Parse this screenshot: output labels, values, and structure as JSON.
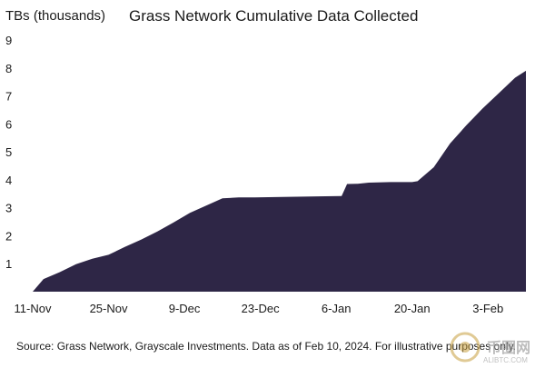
{
  "chart_data": {
    "type": "area",
    "title": "Grass Network Cumulative Data Collected",
    "unit_label": "TBs (thousands)",
    "ylim": [
      0,
      9
    ],
    "y_ticks": [
      9,
      8,
      7,
      6,
      5,
      4,
      3,
      2,
      1
    ],
    "x_tick_labels": [
      "11-Nov",
      "25-Nov",
      "9-Dec",
      "23-Dec",
      "6-Jan",
      "20-Jan",
      "3-Feb"
    ],
    "x_range": [
      "2023-11-11",
      "2024-02-11"
    ],
    "grid": false,
    "fill_color": "#2e2646",
    "series": [
      {
        "dates": [
          "2023-11-11",
          "2023-11-13",
          "2023-11-16",
          "2023-11-19",
          "2023-11-22",
          "2023-11-25",
          "2023-11-28",
          "2023-12-01",
          "2023-12-04",
          "2023-12-07",
          "2023-12-10",
          "2023-12-13",
          "2023-12-16",
          "2023-12-19",
          "2023-12-22",
          "2023-12-27",
          "2023-12-31",
          "2024-01-04",
          "2024-01-07",
          "2024-01-08",
          "2024-01-10",
          "2024-01-12",
          "2024-01-16",
          "2024-01-20",
          "2024-01-21",
          "2024-01-24",
          "2024-01-27",
          "2024-01-30",
          "2024-02-02",
          "2024-02-05",
          "2024-02-08",
          "2024-02-10"
        ],
        "values": [
          0,
          0.45,
          0.7,
          0.98,
          1.18,
          1.32,
          1.6,
          1.86,
          2.15,
          2.48,
          2.82,
          3.08,
          3.34,
          3.37,
          3.37,
          3.39,
          3.4,
          3.41,
          3.42,
          3.85,
          3.86,
          3.9,
          3.92,
          3.92,
          3.95,
          4.45,
          5.3,
          5.95,
          6.55,
          7.1,
          7.65,
          7.9
        ]
      }
    ]
  },
  "footer": {
    "source": "Source: Grass Network, Grayscale Investments. Data as of Feb 10, 2024. For illustrative purposes only."
  },
  "watermark": {
    "brand_text": "币圈网",
    "url_text": "ALIBTC.COM"
  }
}
